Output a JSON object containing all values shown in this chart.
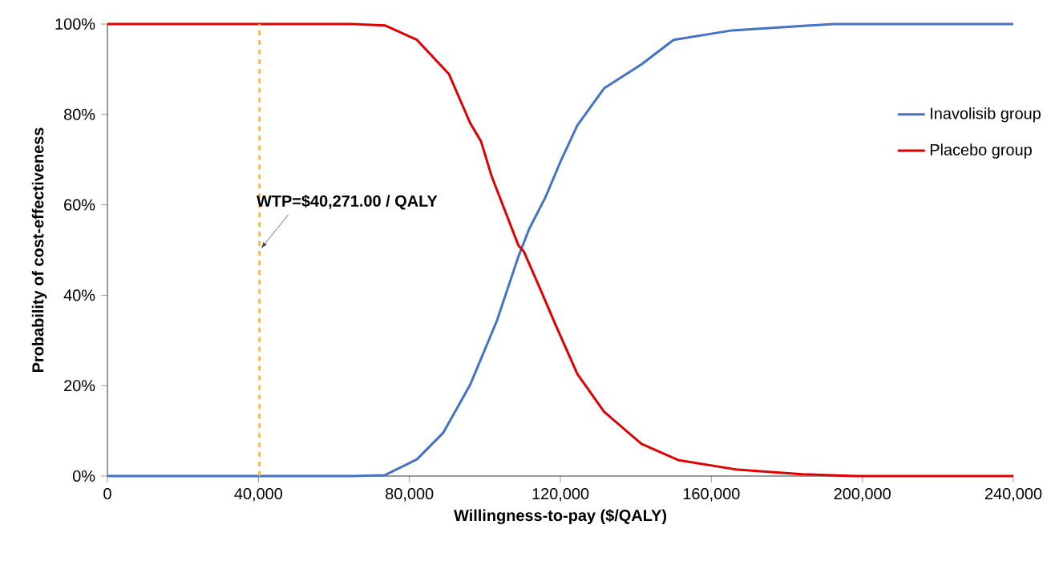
{
  "chart_data": {
    "type": "line",
    "xlabel": "Willingness-to-pay ($/QALY)",
    "ylabel": "Probability  of cost-effectiveness",
    "xlim": [
      0,
      240000
    ],
    "ylim": [
      0,
      100
    ],
    "xticks": [
      {
        "value": 0,
        "label": "0"
      },
      {
        "value": 40000,
        "label": "40,000"
      },
      {
        "value": 80000,
        "label": "80,000"
      },
      {
        "value": 120000,
        "label": "120,000"
      },
      {
        "value": 160000,
        "label": "160,000"
      },
      {
        "value": 200000,
        "label": "200,000"
      },
      {
        "value": 240000,
        "label": "240,000"
      }
    ],
    "yticks": [
      {
        "value": 0,
        "label": "0%"
      },
      {
        "value": 20,
        "label": "20%"
      },
      {
        "value": 40,
        "label": "40%"
      },
      {
        "value": 60,
        "label": "60%"
      },
      {
        "value": 80,
        "label": "80%"
      },
      {
        "value": 100,
        "label": "100%"
      }
    ],
    "series": [
      {
        "name": "Inavolisib group",
        "color": "#4472c4",
        "x": [
          0,
          65000,
          73500,
          82000,
          89000,
          96100,
          103200,
          108900,
          111700,
          116000,
          120200,
          124500,
          131600,
          141500,
          150000,
          165500,
          192400,
          240000
        ],
        "values": [
          0,
          0,
          0.2,
          3.7,
          9.6,
          20.2,
          34.4,
          48.6,
          54.6,
          61.6,
          69.9,
          77.6,
          85.8,
          91.1,
          96.5,
          98.6,
          100,
          100
        ]
      },
      {
        "name": "Placebo group",
        "color": "#e00000",
        "x": [
          0,
          65000,
          73500,
          82000,
          90500,
          96100,
          99000,
          101800,
          108900,
          110300,
          114600,
          118800,
          124500,
          131600,
          141500,
          151400,
          167000,
          184000,
          198000,
          240000
        ],
        "values": [
          100,
          100,
          99.7,
          96.5,
          88.9,
          78.1,
          74,
          66.3,
          51,
          49.7,
          41.5,
          33.3,
          22.6,
          14.2,
          7.1,
          3.5,
          1.4,
          0.4,
          0,
          0
        ]
      }
    ],
    "ref_lines": [
      {
        "axis": "x",
        "value": 40271,
        "color": "#f5b82e",
        "line_style": "dashed"
      }
    ],
    "annotations": [
      {
        "text": "WTP=$40,271.00 / QALY",
        "x": 40271,
        "y": 50
      }
    ],
    "legend": "right",
    "grid": false,
    "marker": "none",
    "line_style": "solid"
  }
}
